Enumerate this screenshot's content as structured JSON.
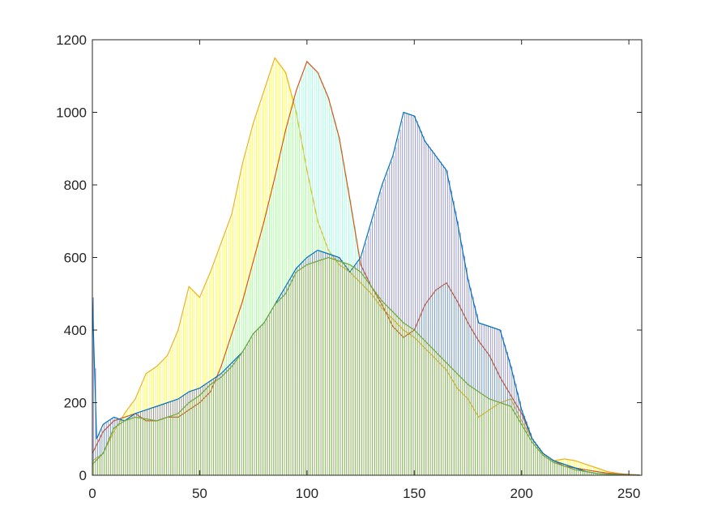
{
  "chart_data": {
    "type": "area",
    "title": "",
    "xlabel": "",
    "ylabel": "",
    "xlim": [
      0,
      256
    ],
    "ylim": [
      0,
      1200
    ],
    "grid": false,
    "legend": "none",
    "x_ticks": [
      0,
      50,
      100,
      150,
      200,
      250
    ],
    "y_ticks": [
      0,
      200,
      400,
      600,
      800,
      1000,
      1200
    ],
    "x_tick_labels": [
      "0",
      "50",
      "100",
      "150",
      "200",
      "250"
    ],
    "y_tick_labels": [
      "0",
      "200",
      "400",
      "600",
      "800",
      "1000",
      "1200"
    ],
    "series": [
      {
        "color": "#EDB120",
        "fill": "#FFFF00",
        "points": [
          [
            0,
            40
          ],
          [
            5,
            60
          ],
          [
            10,
            120
          ],
          [
            15,
            170
          ],
          [
            20,
            210
          ],
          [
            25,
            280
          ],
          [
            30,
            300
          ],
          [
            35,
            330
          ],
          [
            40,
            400
          ],
          [
            45,
            520
          ],
          [
            50,
            490
          ],
          [
            55,
            560
          ],
          [
            60,
            640
          ],
          [
            65,
            720
          ],
          [
            70,
            860
          ],
          [
            75,
            970
          ],
          [
            80,
            1060
          ],
          [
            85,
            1150
          ],
          [
            90,
            1110
          ],
          [
            95,
            1000
          ],
          [
            100,
            840
          ],
          [
            105,
            700
          ],
          [
            110,
            620
          ],
          [
            115,
            580
          ],
          [
            120,
            560
          ],
          [
            125,
            530
          ],
          [
            130,
            500
          ],
          [
            135,
            460
          ],
          [
            140,
            430
          ],
          [
            145,
            400
          ],
          [
            150,
            380
          ],
          [
            155,
            350
          ],
          [
            160,
            320
          ],
          [
            165,
            290
          ],
          [
            170,
            240
          ],
          [
            175,
            210
          ],
          [
            180,
            160
          ],
          [
            185,
            180
          ],
          [
            190,
            200
          ],
          [
            195,
            210
          ],
          [
            200,
            150
          ],
          [
            205,
            100
          ],
          [
            210,
            60
          ],
          [
            215,
            40
          ],
          [
            220,
            45
          ],
          [
            225,
            40
          ],
          [
            230,
            30
          ],
          [
            235,
            20
          ],
          [
            240,
            10
          ],
          [
            245,
            5
          ],
          [
            250,
            2
          ],
          [
            255,
            0
          ]
        ]
      },
      {
        "color": "#D95319",
        "fill": "#7FFFD4",
        "points": [
          [
            0,
            60
          ],
          [
            5,
            120
          ],
          [
            10,
            150
          ],
          [
            15,
            160
          ],
          [
            20,
            170
          ],
          [
            25,
            150
          ],
          [
            30,
            150
          ],
          [
            35,
            160
          ],
          [
            40,
            160
          ],
          [
            45,
            180
          ],
          [
            50,
            200
          ],
          [
            55,
            230
          ],
          [
            60,
            300
          ],
          [
            65,
            390
          ],
          [
            70,
            480
          ],
          [
            75,
            590
          ],
          [
            80,
            700
          ],
          [
            85,
            820
          ],
          [
            90,
            950
          ],
          [
            95,
            1060
          ],
          [
            100,
            1140
          ],
          [
            105,
            1110
          ],
          [
            110,
            1040
          ],
          [
            115,
            930
          ],
          [
            120,
            760
          ],
          [
            125,
            580
          ],
          [
            130,
            520
          ],
          [
            135,
            470
          ],
          [
            140,
            410
          ],
          [
            145,
            380
          ],
          [
            150,
            400
          ],
          [
            155,
            470
          ],
          [
            160,
            510
          ],
          [
            165,
            530
          ],
          [
            170,
            480
          ],
          [
            175,
            420
          ],
          [
            180,
            370
          ],
          [
            185,
            330
          ],
          [
            190,
            270
          ],
          [
            195,
            220
          ],
          [
            200,
            170
          ],
          [
            205,
            100
          ],
          [
            210,
            60
          ],
          [
            215,
            40
          ],
          [
            220,
            25
          ],
          [
            225,
            20
          ],
          [
            230,
            15
          ],
          [
            235,
            10
          ],
          [
            240,
            6
          ],
          [
            245,
            4
          ],
          [
            250,
            2
          ],
          [
            255,
            1
          ]
        ]
      },
      {
        "color": "#0072BD",
        "fill": "#6A6AB8",
        "points": [
          [
            0,
            490
          ],
          [
            2,
            100
          ],
          [
            5,
            140
          ],
          [
            10,
            160
          ],
          [
            15,
            150
          ],
          [
            20,
            170
          ],
          [
            25,
            180
          ],
          [
            30,
            190
          ],
          [
            35,
            200
          ],
          [
            40,
            210
          ],
          [
            45,
            230
          ],
          [
            50,
            240
          ],
          [
            55,
            260
          ],
          [
            60,
            280
          ],
          [
            65,
            310
          ],
          [
            70,
            340
          ],
          [
            75,
            390
          ],
          [
            80,
            420
          ],
          [
            85,
            470
          ],
          [
            90,
            520
          ],
          [
            95,
            570
          ],
          [
            100,
            600
          ],
          [
            105,
            620
          ],
          [
            110,
            610
          ],
          [
            115,
            600
          ],
          [
            120,
            560
          ],
          [
            125,
            600
          ],
          [
            130,
            700
          ],
          [
            135,
            800
          ],
          [
            140,
            880
          ],
          [
            145,
            1000
          ],
          [
            150,
            990
          ],
          [
            155,
            920
          ],
          [
            160,
            880
          ],
          [
            165,
            840
          ],
          [
            170,
            700
          ],
          [
            175,
            540
          ],
          [
            180,
            420
          ],
          [
            185,
            410
          ],
          [
            190,
            400
          ],
          [
            195,
            300
          ],
          [
            200,
            180
          ],
          [
            205,
            100
          ],
          [
            210,
            60
          ],
          [
            215,
            40
          ],
          [
            220,
            30
          ],
          [
            225,
            20
          ],
          [
            230,
            10
          ],
          [
            235,
            5
          ],
          [
            240,
            3
          ],
          [
            245,
            2
          ],
          [
            250,
            1
          ],
          [
            255,
            0
          ]
        ]
      },
      {
        "color": "#6FA83A",
        "fill": "#9BC53D",
        "points": [
          [
            0,
            30
          ],
          [
            5,
            60
          ],
          [
            10,
            130
          ],
          [
            15,
            150
          ],
          [
            20,
            160
          ],
          [
            25,
            155
          ],
          [
            30,
            150
          ],
          [
            35,
            160
          ],
          [
            40,
            170
          ],
          [
            45,
            200
          ],
          [
            50,
            220
          ],
          [
            55,
            250
          ],
          [
            60,
            270
          ],
          [
            65,
            300
          ],
          [
            70,
            340
          ],
          [
            75,
            390
          ],
          [
            80,
            420
          ],
          [
            85,
            470
          ],
          [
            90,
            500
          ],
          [
            95,
            560
          ],
          [
            100,
            580
          ],
          [
            105,
            590
          ],
          [
            110,
            600
          ],
          [
            115,
            590
          ],
          [
            120,
            580
          ],
          [
            125,
            560
          ],
          [
            130,
            520
          ],
          [
            135,
            480
          ],
          [
            140,
            450
          ],
          [
            145,
            420
          ],
          [
            150,
            400
          ],
          [
            155,
            370
          ],
          [
            160,
            340
          ],
          [
            165,
            310
          ],
          [
            170,
            280
          ],
          [
            175,
            250
          ],
          [
            180,
            230
          ],
          [
            185,
            210
          ],
          [
            190,
            200
          ],
          [
            195,
            190
          ],
          [
            200,
            140
          ],
          [
            205,
            90
          ],
          [
            210,
            55
          ],
          [
            215,
            35
          ],
          [
            220,
            25
          ],
          [
            225,
            15
          ],
          [
            230,
            10
          ],
          [
            235,
            5
          ],
          [
            240,
            3
          ],
          [
            245,
            2
          ],
          [
            250,
            1
          ],
          [
            255,
            0
          ]
        ]
      }
    ]
  }
}
